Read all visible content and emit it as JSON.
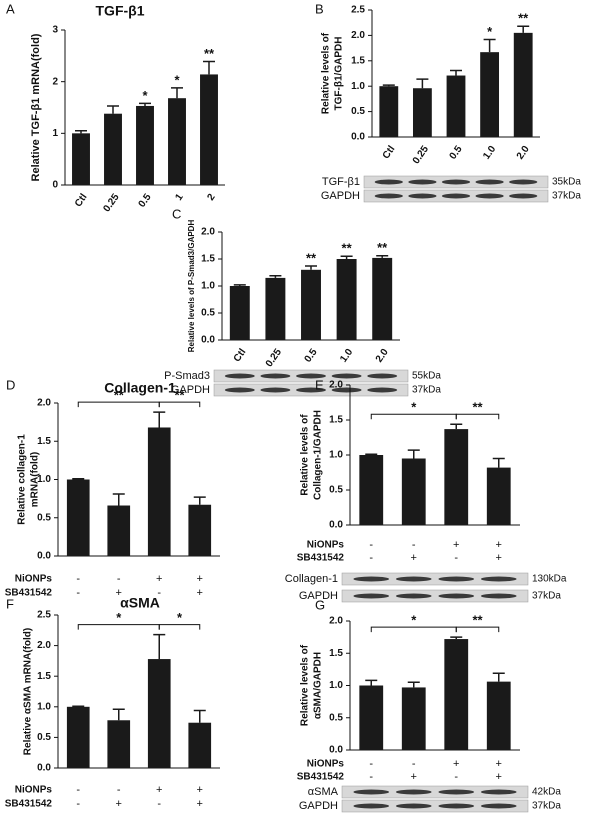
{
  "chart_data": [
    {
      "type": "bar",
      "panel": "A",
      "title": "TGF-β1",
      "y_label": [
        "Relative TGF-β1 mRNA(fold)"
      ],
      "color": "#1a1a1a",
      "categories": [
        "Ctl",
        "0.25",
        "0.5",
        "1",
        "2"
      ],
      "values": [
        1.0,
        1.38,
        1.53,
        1.68,
        2.14
      ],
      "errors": [
        0.05,
        0.15,
        0.05,
        0.2,
        0.25
      ],
      "stars": [
        null,
        null,
        "*",
        "*",
        "**"
      ],
      "ylim": [
        0,
        3
      ],
      "yticks": [
        0,
        1,
        2,
        3
      ]
    },
    {
      "type": "bar",
      "panel": "B",
      "y_label": [
        "Relative levels of",
        "TGF-β1/GAPDH"
      ],
      "color": "#1a1a1a",
      "categories": [
        "Ctl",
        "0.25",
        "0.5",
        "1.0",
        "2.0"
      ],
      "values": [
        1.0,
        0.96,
        1.21,
        1.67,
        2.05
      ],
      "errors": [
        0.02,
        0.18,
        0.1,
        0.25,
        0.13
      ],
      "stars": [
        null,
        null,
        null,
        "*",
        "**"
      ],
      "ylim": [
        0,
        2.5
      ],
      "yticks": [
        {
          "value": 0,
          "label": "0.0"
        },
        0.5,
        {
          "value": 1,
          "label": "1.0"
        },
        1.5,
        {
          "value": 2,
          "label": "2.0"
        },
        2.5
      ],
      "blots": [
        {
          "name": "TGF-β1",
          "size": "35kDa"
        },
        {
          "name": "GAPDH",
          "size": "37kDa"
        }
      ]
    },
    {
      "type": "bar",
      "panel": "C",
      "y_label": [
        "Relative levels of P-Smad3/GAPDH"
      ],
      "color": "#1a1a1a",
      "categories": [
        "Ctl",
        "0.25",
        "0.5",
        "1.0",
        "2.0"
      ],
      "values": [
        1.0,
        1.15,
        1.3,
        1.5,
        1.52
      ],
      "errors": [
        0.02,
        0.04,
        0.07,
        0.05,
        0.04
      ],
      "stars": [
        null,
        null,
        "**",
        "**",
        "**"
      ],
      "ylim": [
        0,
        2
      ],
      "yticks": [
        {
          "value": 0,
          "label": "0.0"
        },
        0.5,
        {
          "value": 1,
          "label": "1.0"
        },
        1.5,
        {
          "value": 2,
          "label": "2.0"
        }
      ],
      "blots": [
        {
          "name": "P-Smad3",
          "size": "55kDa"
        },
        {
          "name": "GAPDH",
          "size": "37kDa"
        }
      ]
    },
    {
      "type": "bar",
      "panel": "D",
      "title": "Collagen-1",
      "y_label": [
        "Relative collagen-1",
        "mRNA(fold)"
      ],
      "color": "#1a1a1a",
      "treatments": [
        {
          "name": "NiONPs",
          "values": [
            "-",
            "-",
            "+",
            "+"
          ]
        },
        {
          "name": "SB431542",
          "values": [
            "-",
            "+",
            "-",
            "+"
          ]
        }
      ],
      "values": [
        1.0,
        0.66,
        1.68,
        0.67
      ],
      "errors": [
        0.01,
        0.15,
        0.2,
        0.1
      ],
      "ylim": [
        0,
        2
      ],
      "yticks": [
        {
          "value": 0,
          "label": "0.0"
        },
        0.5,
        {
          "value": 1,
          "label": "1.0"
        },
        1.5,
        {
          "value": 2,
          "label": "2.0"
        }
      ],
      "brackets": [
        {
          "from": 0,
          "to": 2,
          "label": "**"
        },
        {
          "from": 2,
          "to": 3,
          "label": "**"
        }
      ]
    },
    {
      "type": "bar",
      "panel": "E",
      "y_label": [
        "Relative levels of",
        "Collagen-1/GAPDH"
      ],
      "color": "#1a1a1a",
      "treatments": [
        {
          "name": "NiONPs",
          "values": [
            "-",
            "-",
            "+",
            "+"
          ]
        },
        {
          "name": "SB431542",
          "values": [
            "-",
            "+",
            "-",
            "+"
          ]
        }
      ],
      "values": [
        1.0,
        0.95,
        1.37,
        0.82
      ],
      "errors": [
        0.01,
        0.12,
        0.07,
        0.13
      ],
      "ylim": [
        0,
        2
      ],
      "yticks": [
        {
          "value": 0,
          "label": "0.0"
        },
        0.5,
        {
          "value": 1,
          "label": "1.0"
        },
        1.5,
        {
          "value": 2,
          "label": "2.0"
        }
      ],
      "brackets": [
        {
          "from": 0,
          "to": 2,
          "label": "*"
        },
        {
          "from": 2,
          "to": 3,
          "label": "**"
        }
      ],
      "blots": [
        {
          "name": "Collagen-1",
          "size": "130kDa"
        },
        {
          "name": "GAPDH",
          "size": "37kDa"
        }
      ]
    },
    {
      "type": "bar",
      "panel": "F",
      "title": "αSMA",
      "y_label": [
        "Relative αSMA mRNA(fold)"
      ],
      "color": "#1a1a1a",
      "treatments": [
        {
          "name": "NiONPs",
          "values": [
            "-",
            "-",
            "+",
            "+"
          ]
        },
        {
          "name": "SB431542",
          "values": [
            "-",
            "+",
            "-",
            "+"
          ]
        }
      ],
      "values": [
        1.0,
        0.78,
        1.78,
        0.74
      ],
      "errors": [
        0.01,
        0.18,
        0.4,
        0.2
      ],
      "ylim": [
        0,
        2.5
      ],
      "yticks": [
        {
          "value": 0,
          "label": "0.0"
        },
        0.5,
        {
          "value": 1,
          "label": "1.0"
        },
        1.5,
        {
          "value": 2,
          "label": "2.0"
        },
        2.5
      ],
      "brackets": [
        {
          "from": 0,
          "to": 2,
          "label": "*"
        },
        {
          "from": 2,
          "to": 3,
          "label": "*"
        }
      ]
    },
    {
      "type": "bar",
      "panel": "G",
      "y_label": [
        "Relative levels of",
        "αSMA/GAPDH"
      ],
      "color": "#1a1a1a",
      "treatments": [
        {
          "name": "NiONPs",
          "values": [
            "-",
            "-",
            "+",
            "+"
          ]
        },
        {
          "name": "SB431542",
          "values": [
            "-",
            "+",
            "-",
            "+"
          ]
        }
      ],
      "values": [
        1.0,
        0.97,
        1.72,
        1.06
      ],
      "errors": [
        0.08,
        0.08,
        0.03,
        0.13
      ],
      "ylim": [
        0,
        2
      ],
      "yticks": [
        {
          "value": 0,
          "label": "0.0"
        },
        0.5,
        {
          "value": 1,
          "label": "1.0"
        },
        1.5,
        {
          "value": 2,
          "label": "2.0"
        }
      ],
      "brackets": [
        {
          "from": 0,
          "to": 2,
          "label": "*"
        },
        {
          "from": 2,
          "to": 3,
          "label": "**"
        }
      ],
      "blots": [
        {
          "name": "αSMA",
          "size": "42kDa"
        },
        {
          "name": "GAPDH",
          "size": "37kDa"
        }
      ]
    }
  ]
}
